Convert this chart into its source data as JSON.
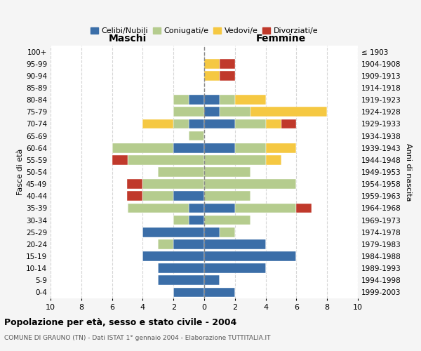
{
  "age_groups": [
    "100+",
    "95-99",
    "90-94",
    "85-89",
    "80-84",
    "75-79",
    "70-74",
    "65-69",
    "60-64",
    "55-59",
    "50-54",
    "45-49",
    "40-44",
    "35-39",
    "30-34",
    "25-29",
    "20-24",
    "15-19",
    "10-14",
    "5-9",
    "0-4"
  ],
  "birth_years": [
    "≤ 1903",
    "1904-1908",
    "1909-1913",
    "1914-1918",
    "1919-1923",
    "1924-1928",
    "1929-1933",
    "1934-1938",
    "1939-1943",
    "1944-1948",
    "1949-1953",
    "1954-1958",
    "1959-1963",
    "1964-1968",
    "1969-1973",
    "1974-1978",
    "1979-1983",
    "1984-1988",
    "1989-1993",
    "1994-1998",
    "1999-2003"
  ],
  "maschi": {
    "celibi": [
      0,
      0,
      0,
      0,
      1,
      0,
      1,
      0,
      2,
      0,
      0,
      0,
      2,
      1,
      1,
      4,
      2,
      4,
      3,
      3,
      2
    ],
    "coniugati": [
      0,
      0,
      0,
      0,
      1,
      2,
      1,
      1,
      4,
      5,
      3,
      4,
      2,
      4,
      1,
      0,
      1,
      0,
      0,
      0,
      0
    ],
    "vedovi": [
      0,
      0,
      0,
      0,
      0,
      0,
      2,
      0,
      0,
      0,
      0,
      0,
      0,
      0,
      0,
      0,
      0,
      0,
      0,
      0,
      0
    ],
    "divorziati": [
      0,
      0,
      0,
      0,
      0,
      0,
      0,
      0,
      0,
      1,
      0,
      1,
      1,
      0,
      0,
      0,
      0,
      0,
      0,
      0,
      0
    ]
  },
  "femmine": {
    "nubili": [
      0,
      0,
      0,
      0,
      1,
      1,
      2,
      0,
      2,
      0,
      0,
      0,
      0,
      2,
      0,
      1,
      4,
      6,
      4,
      1,
      2
    ],
    "coniugate": [
      0,
      0,
      0,
      0,
      1,
      2,
      2,
      0,
      2,
      4,
      3,
      6,
      3,
      4,
      3,
      1,
      0,
      0,
      0,
      0,
      0
    ],
    "vedove": [
      0,
      1,
      1,
      0,
      2,
      5,
      1,
      0,
      2,
      1,
      0,
      0,
      0,
      0,
      0,
      0,
      0,
      0,
      0,
      0,
      0
    ],
    "divorziate": [
      0,
      1,
      1,
      0,
      0,
      0,
      1,
      0,
      0,
      0,
      0,
      0,
      0,
      1,
      0,
      0,
      0,
      0,
      0,
      0,
      0
    ]
  },
  "color_celibi": "#3b6ea8",
  "color_coniugati": "#b5cc8e",
  "color_vedovi": "#f5c842",
  "color_divorziati": "#c0392b",
  "title": "Popolazione per età, sesso e stato civile - 2004",
  "subtitle": "COMUNE DI GRAUNO (TN) - Dati ISTAT 1° gennaio 2004 - Elaborazione TUTTITALIA.IT",
  "xlabel_left": "Maschi",
  "xlabel_right": "Femmine",
  "ylabel_left": "Fasce di età",
  "ylabel_right": "Anni di nascita",
  "xlim": 10,
  "bg_color": "#f5f5f5",
  "plot_bg": "#ffffff"
}
